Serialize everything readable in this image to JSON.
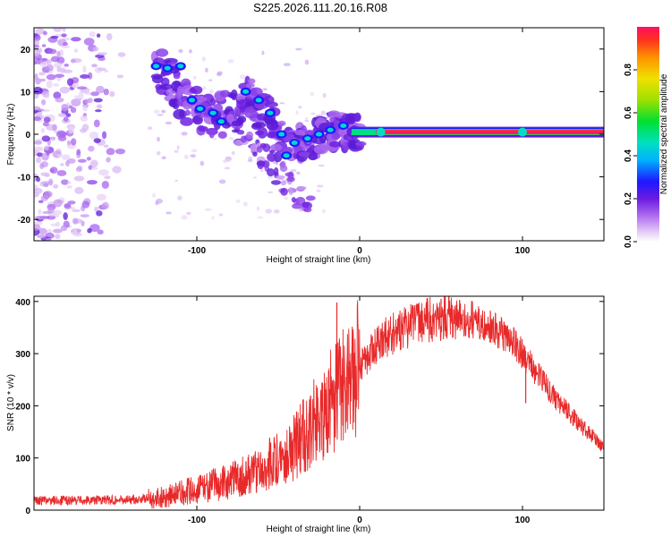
{
  "title": "S225.2026.111.20.16.R08",
  "chart_data": [
    {
      "type": "heatmap",
      "xlabel": "Height of straight line (km)",
      "ylabel": "Frequency (Hz)",
      "xlim": [
        -200,
        150
      ],
      "ylim": [
        -25,
        25
      ],
      "xticks": [
        -100,
        0,
        100
      ],
      "yticks": [
        -20,
        -10,
        0,
        10,
        20
      ],
      "colorbar": {
        "label": "Normalized spectral amplitude",
        "range": [
          0,
          1
        ],
        "ticks": [
          "0.0",
          "0.2",
          "0.4",
          "0.6",
          "0.8"
        ]
      },
      "features": {
        "noise_region_km": [
          -200,
          -130
        ],
        "feature_track": [
          {
            "x": -125,
            "y": 16
          },
          {
            "x": -105,
            "y": 7
          },
          {
            "x": -85,
            "y": 4
          },
          {
            "x": -65,
            "y": 9
          },
          {
            "x": -50,
            "y": -2
          },
          {
            "x": -30,
            "y": -1
          },
          {
            "x": -15,
            "y": 1
          },
          {
            "x": 0,
            "y": 1
          }
        ],
        "line_frequency_hz": 0.5,
        "line_range_km": [
          0,
          150
        ]
      }
    },
    {
      "type": "line",
      "xlabel": "Height of straight line (km)",
      "ylabel": "SNR (10 * v/v)",
      "xlim": [
        -200,
        150
      ],
      "ylim": [
        0,
        410
      ],
      "xticks": [
        -100,
        0,
        100
      ],
      "yticks": [
        0,
        100,
        200,
        300,
        400
      ],
      "series": [
        {
          "name": "SNR",
          "color": "#e8292a",
          "envelope": [
            {
              "x": -200,
              "y": 18
            },
            {
              "x": -140,
              "y": 20
            },
            {
              "x": -120,
              "y": 25
            },
            {
              "x": -100,
              "y": 40
            },
            {
              "x": -80,
              "y": 55
            },
            {
              "x": -60,
              "y": 80
            },
            {
              "x": -40,
              "y": 120
            },
            {
              "x": -25,
              "y": 180
            },
            {
              "x": -10,
              "y": 240
            },
            {
              "x": 0,
              "y": 280
            },
            {
              "x": 15,
              "y": 330
            },
            {
              "x": 35,
              "y": 360
            },
            {
              "x": 55,
              "y": 372
            },
            {
              "x": 75,
              "y": 362
            },
            {
              "x": 90,
              "y": 335
            },
            {
              "x": 100,
              "y": 300
            },
            {
              "x": 120,
              "y": 215
            },
            {
              "x": 135,
              "y": 165
            },
            {
              "x": 150,
              "y": 120
            }
          ],
          "spikes": [
            {
              "x": -14,
              "y": 398
            },
            {
              "x": 50,
              "y": 405
            },
            {
              "x": 102,
              "y": 205
            }
          ]
        }
      ]
    }
  ]
}
